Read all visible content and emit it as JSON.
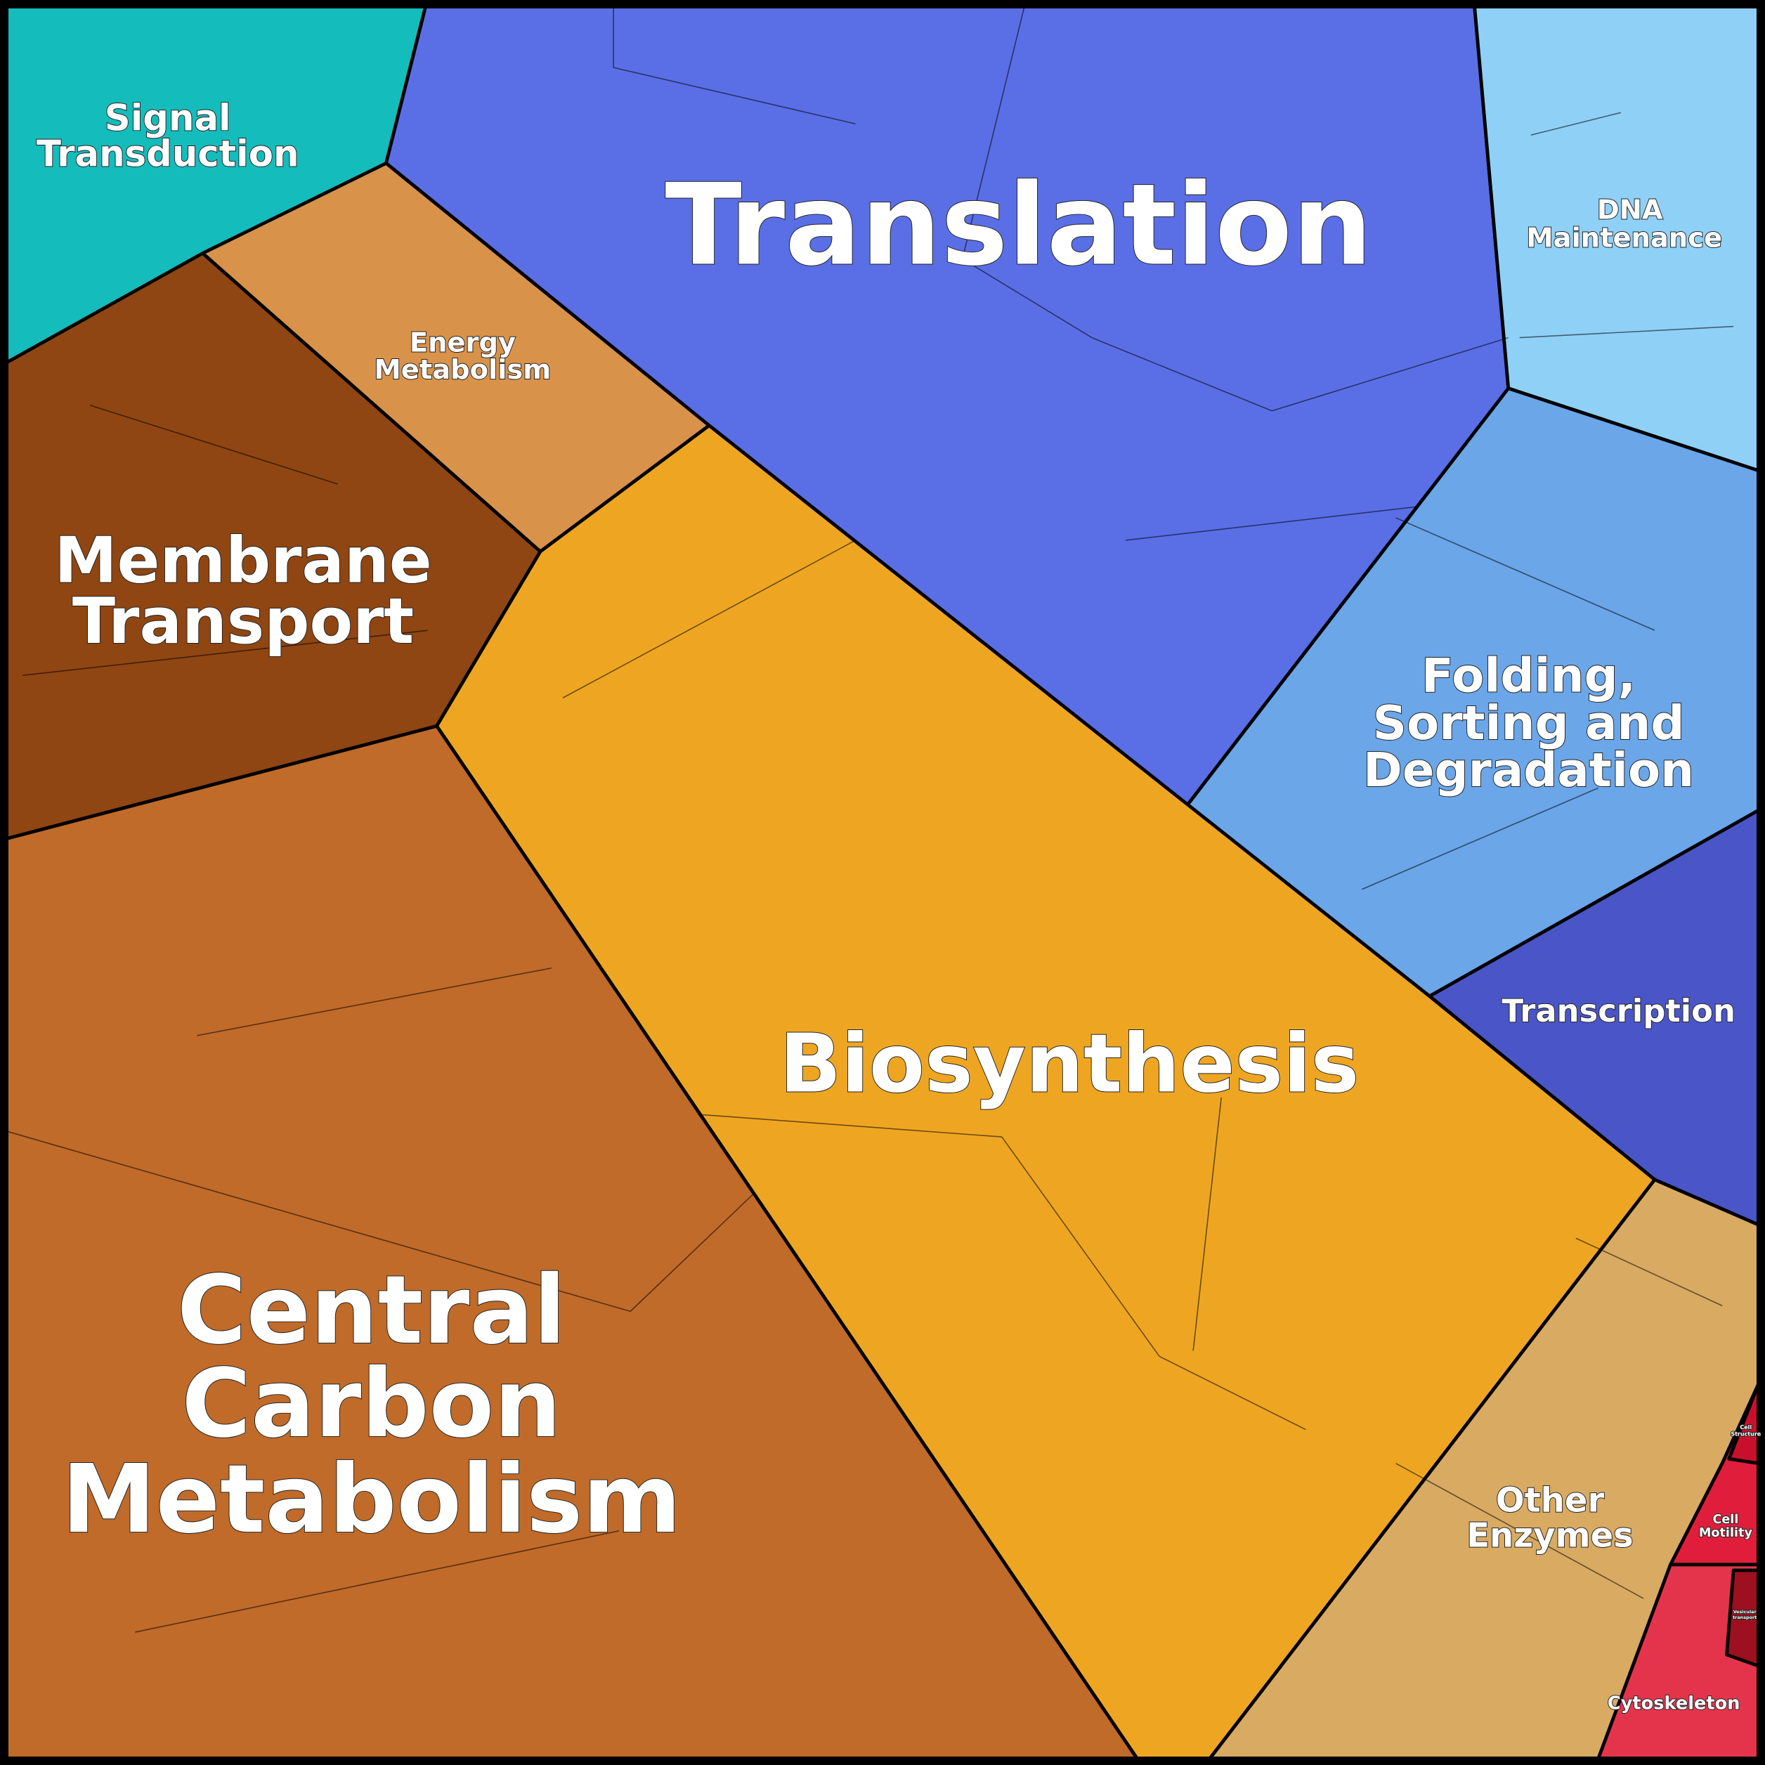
{
  "regions": [
    {
      "lines": [
        "Signal",
        "Transduction"
      ]
    },
    {
      "lines": [
        "Translation"
      ]
    },
    {
      "lines": [
        "DNA",
        "Maintenance"
      ]
    },
    {
      "lines": [
        "Energy",
        "Metabolism"
      ]
    },
    {
      "lines": [
        "Membrane",
        "Transport"
      ]
    },
    {
      "lines": [
        "Folding,",
        "Sorting and",
        "Degradation"
      ]
    },
    {
      "lines": [
        "Biosynthesis"
      ]
    },
    {
      "lines": [
        "Transcription"
      ]
    },
    {
      "lines": [
        "Central",
        "Carbon",
        "Metabolism"
      ]
    },
    {
      "lines": [
        "Other",
        "Enzymes"
      ]
    },
    {
      "lines": [
        "Cell",
        "Motility"
      ]
    },
    {
      "lines": [
        "Cytoskeleton"
      ]
    },
    {
      "lines": [
        "Cell",
        "Structure"
      ]
    },
    {
      "lines": [
        "Vesicular",
        "transport"
      ]
    }
  ]
}
